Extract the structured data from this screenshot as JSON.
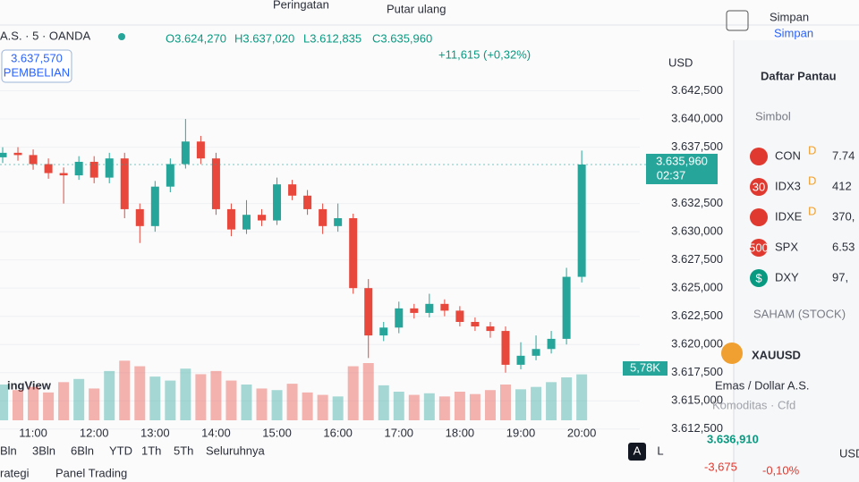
{
  "toolbar": {
    "alerts": "Peringatan",
    "replay": "Putar ulang",
    "save": "Simpan",
    "save_sub": "Simpan"
  },
  "header": {
    "symbol": "A.S. · 5 · OANDA",
    "ohlc": [
      "O3.624,270",
      "H3.637,020",
      "L3.612,835",
      "C3.635,960"
    ],
    "change": "+11,615 (+0,32%)"
  },
  "buy_box": {
    "price": "3.637,570",
    "label": "PEMBELIAN"
  },
  "watermark": "ingView",
  "chart_data": {
    "type": "candlestick",
    "categories": [
      null,
      null,
      "11:00",
      null,
      null,
      null,
      "12:00",
      null,
      null,
      null,
      "13:00",
      null,
      null,
      null,
      "14:00",
      null,
      null,
      null,
      "15:00",
      null,
      null,
      null,
      "16:00",
      null,
      null,
      null,
      "17:00",
      null,
      null,
      null,
      "18:00",
      null,
      null,
      null,
      "19:00",
      null,
      null,
      null,
      "20:00"
    ],
    "open": [
      3636.6,
      3637.0,
      3636.8,
      3636.0,
      3635.2,
      3635.0,
      3636.2,
      3634.8,
      3636.5,
      3632.0,
      3630.5,
      3634.0,
      3636.0,
      3638.0,
      3636.5,
      3632.0,
      3630.2,
      3631.5,
      3631.0,
      3634.2,
      3633.2,
      3632.0,
      3630.5,
      3631.2,
      3625.0,
      3620.8,
      3621.5,
      3623.2,
      3622.8,
      3623.6,
      3623.0,
      3622.0,
      3621.6,
      3621.2,
      3618.2,
      3619.0,
      3619.6,
      3620.5,
      3626.0
    ],
    "high": [
      3637.5,
      3637.5,
      3637.3,
      3636.5,
      3635.7,
      3636.7,
      3636.7,
      3637.0,
      3637.0,
      3632.5,
      3634.5,
      3636.5,
      3640.0,
      3638.5,
      3637.0,
      3632.5,
      3632.8,
      3632.0,
      3634.8,
      3634.6,
      3633.7,
      3632.5,
      3632.5,
      3631.6,
      3625.8,
      3622.0,
      3623.8,
      3623.6,
      3624.5,
      3624.0,
      3623.4,
      3622.4,
      3622.0,
      3621.6,
      3620.2,
      3620.8,
      3621.2,
      3626.8,
      3637.2
    ],
    "low": [
      3636.1,
      3636.3,
      3635.5,
      3634.7,
      3632.5,
      3634.6,
      3634.3,
      3634.3,
      3631.2,
      3629.0,
      3630.0,
      3633.5,
      3635.6,
      3636.0,
      3631.5,
      3629.6,
      3629.8,
      3630.5,
      3630.6,
      3632.8,
      3631.5,
      3629.8,
      3630.0,
      3624.5,
      3618.8,
      3620.3,
      3621.0,
      3622.3,
      3622.4,
      3622.5,
      3621.6,
      3621.2,
      3620.6,
      3617.5,
      3617.8,
      3618.6,
      3619.2,
      3620.0,
      3625.5
    ],
    "close": [
      3637.0,
      3636.8,
      3636.0,
      3635.2,
      3635.0,
      3636.2,
      3634.8,
      3636.5,
      3632.0,
      3630.5,
      3634.0,
      3636.0,
      3638.0,
      3636.5,
      3632.0,
      3630.2,
      3631.5,
      3631.0,
      3634.2,
      3633.2,
      3632.0,
      3630.5,
      3631.2,
      3625.0,
      3620.8,
      3621.5,
      3623.2,
      3622.8,
      3623.6,
      3623.0,
      3622.0,
      3621.6,
      3621.2,
      3618.2,
      3619.0,
      3619.6,
      3620.5,
      3626.0,
      3635.96
    ],
    "up_color": "#26a69a",
    "down_color": "#e8473c",
    "ylim": [
      3610.5,
      3645
    ],
    "yticks": [
      {
        "value": 3642.5,
        "label": "3.642,500"
      },
      {
        "value": 3640,
        "label": "3.640,000"
      },
      {
        "value": 3637.5,
        "label": "3.637,500"
      },
      {
        "value": 3632.5,
        "label": "3.632,500"
      },
      {
        "value": 3630,
        "label": "3.630,000"
      },
      {
        "value": 3627.5,
        "label": "3.627,500"
      },
      {
        "value": 3625,
        "label": "3.625,000"
      },
      {
        "value": 3622.5,
        "label": "3.622,500"
      },
      {
        "value": 3620,
        "label": "3.620,000"
      },
      {
        "value": 3617.5,
        "label": "3.617,500"
      },
      {
        "value": 3615,
        "label": "3.615,000"
      },
      {
        "value": 3612.5,
        "label": "3.612,500"
      }
    ],
    "axis_unit": "USD",
    "grid": true,
    "last_price": {
      "value": 3635.96,
      "label": "3.635,960",
      "countdown": "02:37"
    },
    "volume": {
      "values": [
        4.5,
        3.8,
        4.2,
        3.5,
        4.8,
        5.2,
        4.0,
        6.2,
        7.5,
        6.8,
        5.5,
        5.0,
        6.5,
        5.8,
        6.2,
        5.0,
        4.5,
        4.0,
        3.8,
        4.6,
        3.5,
        3.2,
        3.0,
        6.8,
        7.2,
        4.4,
        3.6,
        3.2,
        3.4,
        3.0,
        3.6,
        3.3,
        3.8,
        4.5,
        3.9,
        4.2,
        4.8,
        5.4,
        5.78
      ],
      "ylim": [
        0,
        9
      ],
      "last": {
        "value": 5.78,
        "label": "5,78K"
      }
    }
  },
  "ranges": [
    "Bln",
    "3Bln",
    "6Bln",
    "YTD",
    "1Th",
    "5Th",
    "Seluruhnya"
  ],
  "bottom_tabs": [
    "rategi",
    "Panel Trading"
  ],
  "scale_buttons": [
    "A",
    "L"
  ],
  "watchlist": {
    "title": "Daftar Pantau",
    "column": "Simbol",
    "rows": [
      {
        "symbol": "CON",
        "flag": "D",
        "value": "7.74"
      },
      {
        "badge": "30",
        "symbol": "IDX3",
        "flag": "D",
        "value": "412"
      },
      {
        "symbol": "IDXE",
        "flag": "D",
        "value": "370,"
      },
      {
        "badge": "500",
        "symbol": "SPX",
        "value": "6.53"
      },
      {
        "badge": "$",
        "symbol": "DXY",
        "value": "97,"
      }
    ],
    "section": "SAHAM (STOCK)"
  },
  "detail": {
    "symbol": "XAUUSD",
    "name": "Emas / Dollar A.S.",
    "kind": "Komoditas · Cfd",
    "price": "3.636,910",
    "currency": "USD",
    "change": "-3,675",
    "change_pct": "-0,10%"
  }
}
